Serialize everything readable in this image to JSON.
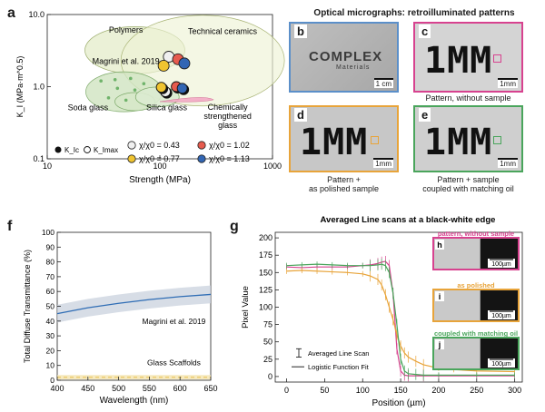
{
  "panels": {
    "a": "a",
    "b": "b",
    "c": "c",
    "d": "d",
    "e": "e",
    "f": "f",
    "g": "g",
    "h": "h",
    "i": "i",
    "j": "j"
  },
  "micrographs": {
    "title": "Optical micrographs: retroilluminated patterns",
    "b_logo": "COMPLEX",
    "b_logo_sub": "Materials",
    "b_scale": "1 cm",
    "pattern_text": "1MM",
    "c_scale": "1mm",
    "d_scale": "1mm",
    "e_scale": "1mm",
    "c_caption": "Pattern, without sample",
    "d_caption": "Pattern +\nas polished sample",
    "e_caption": "Pattern + sample\ncoupled with matching oil",
    "colors": {
      "b": "#5b8fc9",
      "c": "#d7428f",
      "d": "#e8a43a",
      "e": "#4aa55c"
    }
  },
  "chart_data": [
    {
      "id": "a",
      "type": "scatter",
      "title": "",
      "xlabel": "Strength (MPa)",
      "ylabel": "K_I (MPa·m^0.5)",
      "xscale": "log",
      "yscale": "log",
      "xlim": [
        10,
        1000
      ],
      "ylim": [
        0.1,
        10
      ],
      "xticks": [
        "10",
        "100",
        "1000"
      ],
      "yticks": [
        "0.1",
        "1.0",
        "10.0"
      ],
      "regions": [
        "Polymers",
        "Technical ceramics",
        "Magrini et al. 2019",
        "Soda glass",
        "Silica glass",
        "Chemically strengthened glass"
      ],
      "legend": {
        "kic": "K_Ic",
        "kimax": "K_Imax",
        "ratios": [
          "χ/χ0 = 0.43",
          "χ/χ0 = 1.02",
          "χ/χ0 = 0.77",
          "χ/χ0 = 1.13"
        ]
      },
      "series": [
        {
          "name": "χ/χ0 = 0.43",
          "color": "#f0f0f0",
          "points": [
            {
              "x": 120,
              "y": 2.6,
              "kind": "kimax"
            },
            {
              "x": 112,
              "y": 0.85,
              "kind": "kic"
            }
          ]
        },
        {
          "name": "χ/χ0 = 1.02",
          "color": "#e65b4e",
          "points": [
            {
              "x": 145,
              "y": 2.4,
              "kind": "kimax"
            },
            {
              "x": 140,
              "y": 1.0,
              "kind": "kic"
            }
          ]
        },
        {
          "name": "χ/χ0 = 0.77",
          "color": "#f0c430",
          "points": [
            {
              "x": 108,
              "y": 1.95,
              "kind": "kimax"
            },
            {
              "x": 103,
              "y": 0.98,
              "kind": "kic"
            }
          ]
        },
        {
          "name": "χ/χ0 = 1.13",
          "color": "#3266b4",
          "points": [
            {
              "x": 165,
              "y": 2.1,
              "kind": "kimax"
            },
            {
              "x": 158,
              "y": 0.95,
              "kind": "kic"
            }
          ]
        }
      ]
    },
    {
      "id": "f",
      "type": "line",
      "xlabel": "Wavelength (nm)",
      "ylabel": "Total Diffuse Transmittance (%)",
      "xlim": [
        400,
        650
      ],
      "ylim": [
        0,
        100
      ],
      "xticks": [
        400,
        450,
        500,
        550,
        600,
        650
      ],
      "yticks": [
        0,
        10,
        20,
        30,
        40,
        50,
        60,
        70,
        80,
        90,
        100
      ],
      "annotations": [
        "Magrini et al. 2019",
        "Glass Scaffolds"
      ],
      "series": [
        {
          "name": "Magrini et al. 2019",
          "color": "#2f6db5",
          "x": [
            400,
            450,
            500,
            550,
            600,
            650
          ],
          "y": [
            45,
            49,
            52,
            54.5,
            56.5,
            58
          ],
          "band": 6
        },
        {
          "name": "Glass Scaffolds",
          "color": "#e8c050",
          "x": [
            400,
            450,
            500,
            550,
            600,
            650
          ],
          "y": [
            2,
            2,
            2,
            2,
            2,
            2
          ],
          "band": 1.5
        }
      ]
    },
    {
      "id": "g",
      "type": "line",
      "title": "Averaged Line scans at a black-white edge",
      "xlabel": "Position (µm)",
      "ylabel": "Pixel Value",
      "xlim": [
        -15,
        310
      ],
      "ylim": [
        -8,
        208
      ],
      "xticks": [
        0,
        50,
        100,
        150,
        200,
        250,
        300
      ],
      "yticks": [
        0,
        25,
        50,
        75,
        100,
        125,
        150,
        175,
        200
      ],
      "legend": [
        "Averaged Line Scan",
        "Logistic Function Fit"
      ],
      "series": [
        {
          "name": "pattern, without sample",
          "color": "#d7428f",
          "x": [
            0,
            20,
            40,
            60,
            80,
            100,
            110,
            120,
            125,
            130,
            135,
            140,
            145,
            150,
            155,
            160,
            180,
            200,
            250,
            300
          ],
          "y": [
            158,
            157,
            158,
            158,
            158,
            160,
            161,
            163,
            165,
            166,
            160,
            120,
            40,
            8,
            2,
            1,
            1,
            1,
            1,
            1
          ]
        },
        {
          "name": "as polished",
          "color": "#e8a43a",
          "x": [
            0,
            20,
            40,
            60,
            80,
            100,
            110,
            120,
            125,
            130,
            135,
            140,
            145,
            150,
            155,
            160,
            170,
            180,
            200,
            220,
            250,
            300
          ],
          "y": [
            152,
            153,
            152,
            151,
            150,
            148,
            145,
            140,
            132,
            118,
            100,
            82,
            60,
            44,
            34,
            28,
            22,
            17,
            12,
            10,
            8,
            7
          ]
        },
        {
          "name": "coupled with matching oil",
          "color": "#4aa55c",
          "x": [
            0,
            20,
            40,
            60,
            80,
            100,
            110,
            120,
            125,
            130,
            135,
            140,
            145,
            150,
            155,
            160,
            170,
            180,
            200,
            250,
            300
          ],
          "y": [
            160,
            161,
            162,
            161,
            160,
            160,
            160,
            161,
            162,
            160,
            150,
            120,
            75,
            25,
            8,
            4,
            3,
            2,
            2,
            2,
            2
          ]
        }
      ],
      "insets": [
        {
          "label": "pattern, without sample",
          "scale": "100µm",
          "color": "#d7428f"
        },
        {
          "label": "as polished",
          "scale": "100µm",
          "color": "#e8a43a"
        },
        {
          "label": "coupled with matching oil",
          "scale": "100µm",
          "color": "#4aa55c"
        }
      ]
    }
  ]
}
